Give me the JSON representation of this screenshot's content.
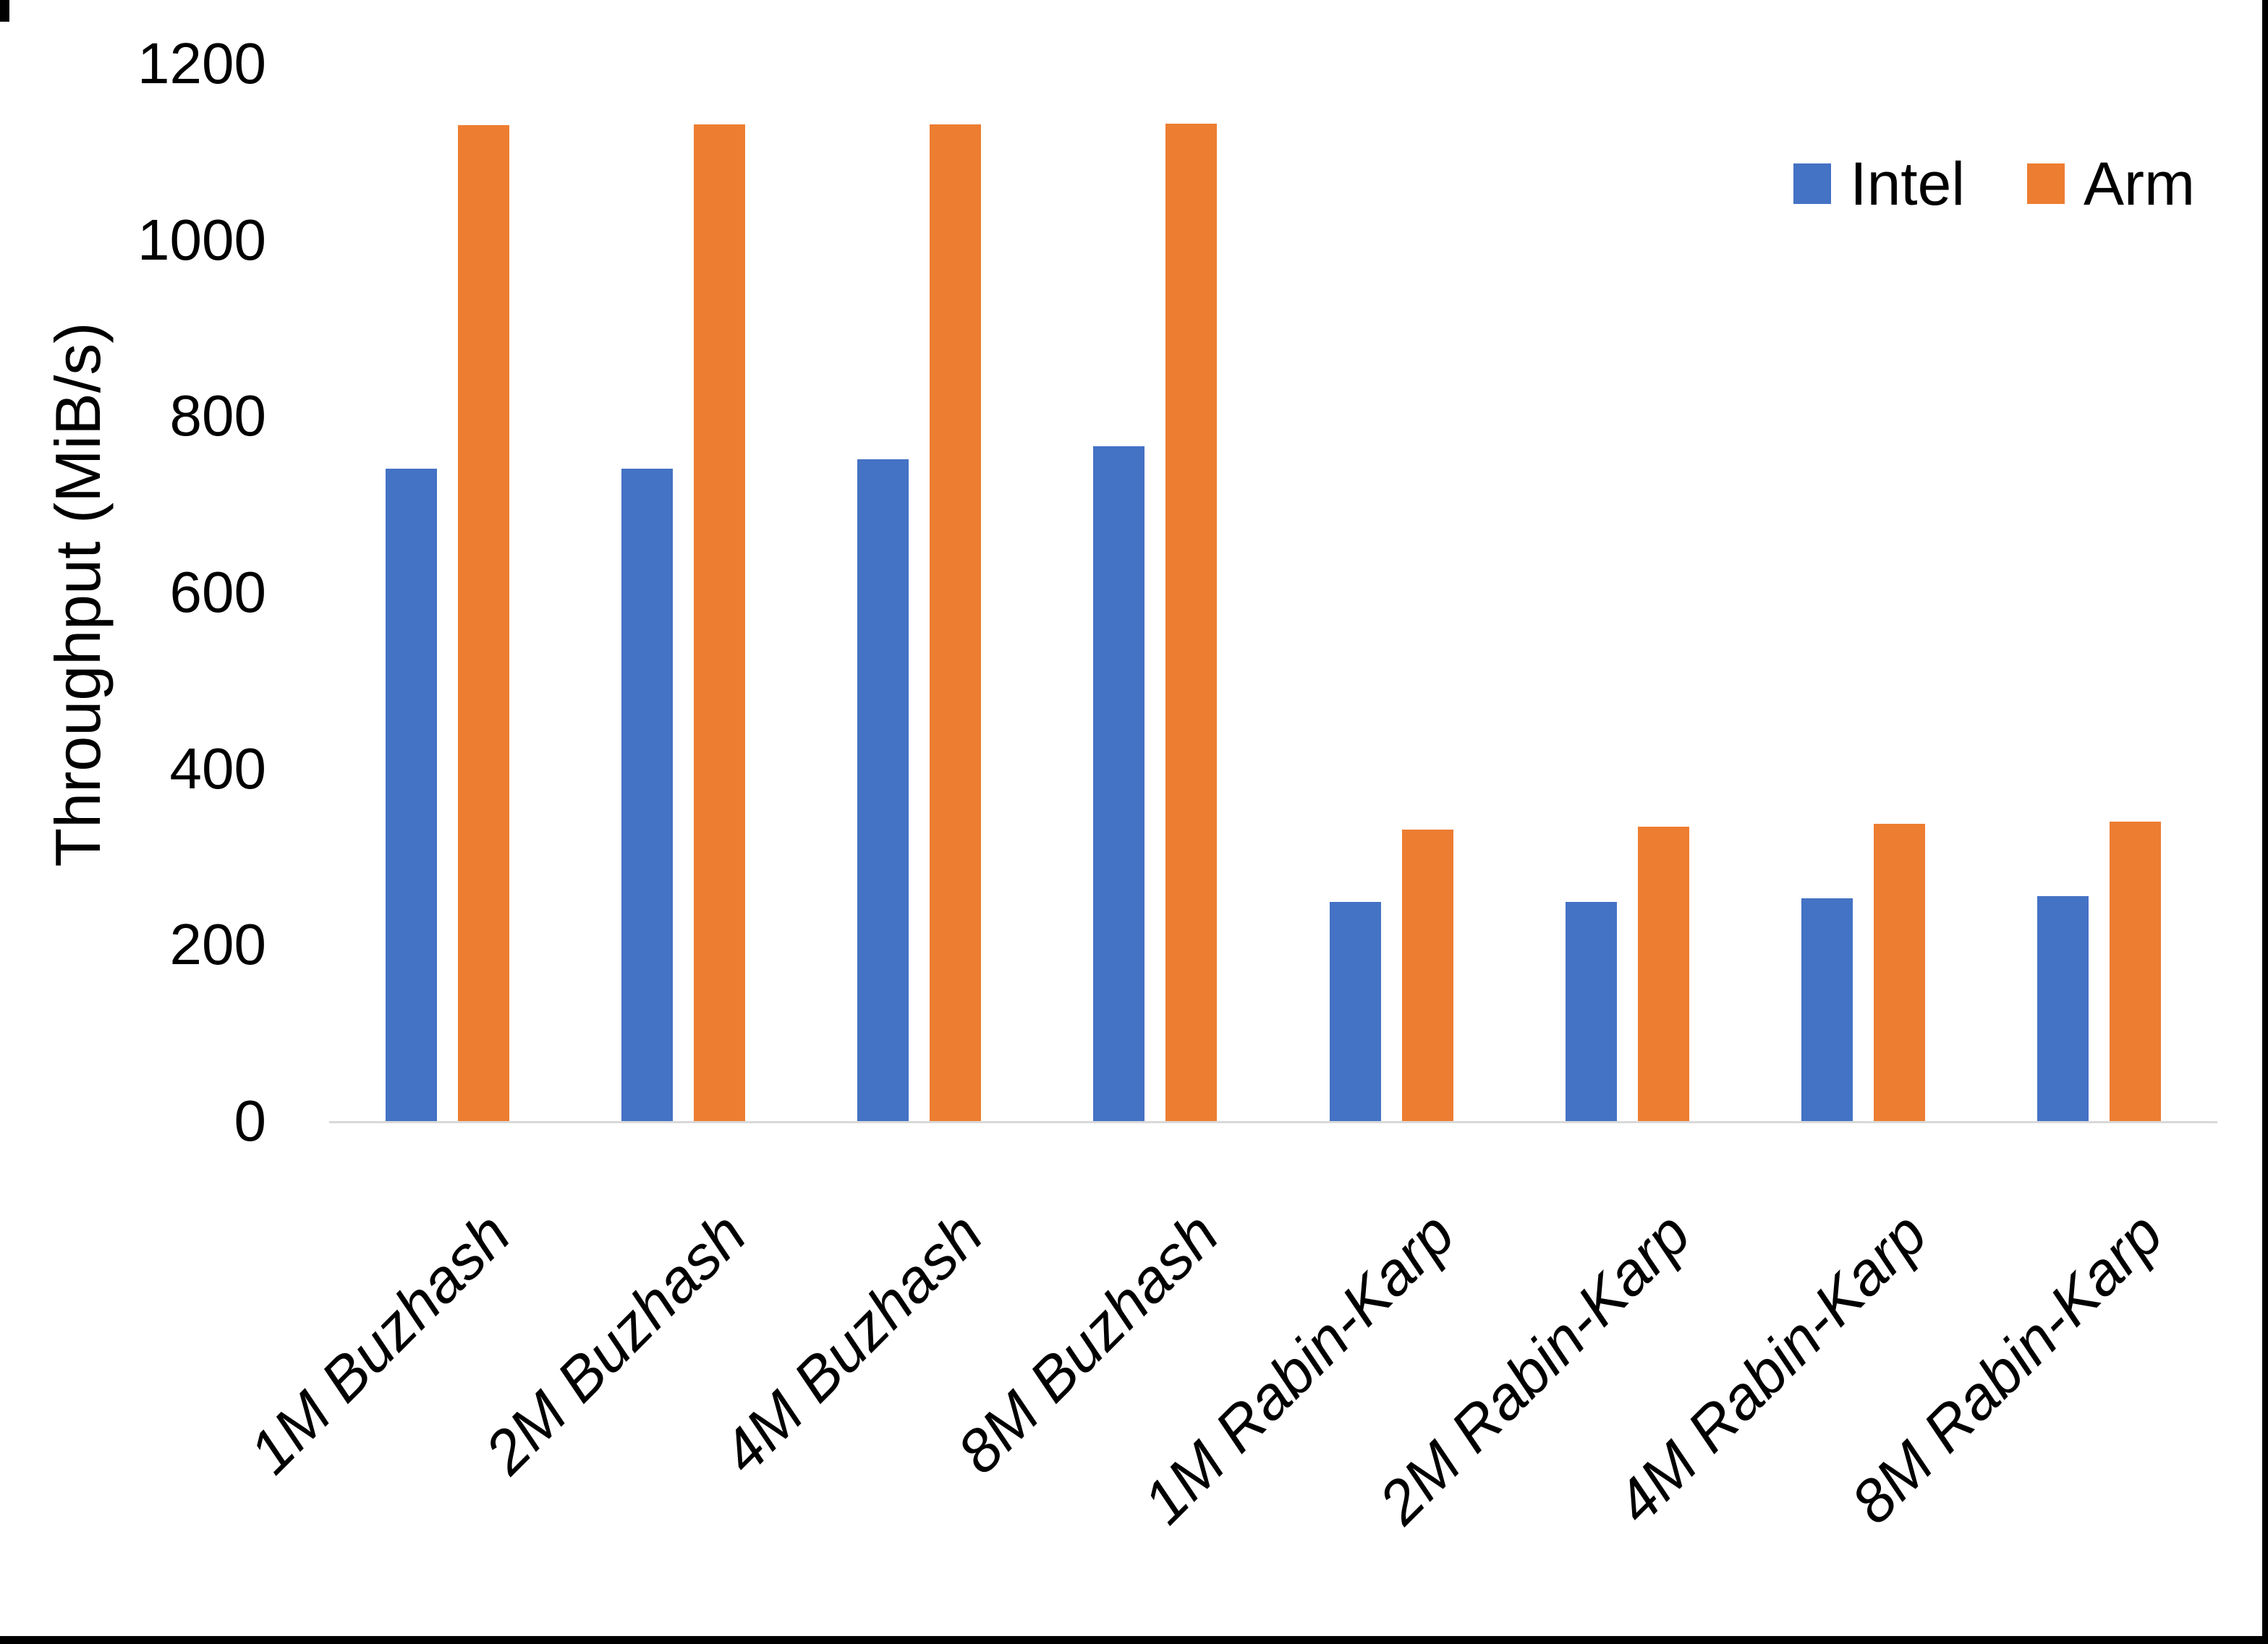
{
  "chart_data": {
    "type": "bar",
    "title": "",
    "xlabel": "",
    "ylabel": "Throughput (MiB/s)",
    "categories": [
      "1M Buzhash",
      "2M Buzhash",
      "4M Buzhash",
      "8M Buzhash",
      "1M Rabin-Karp",
      "2M Rabin-Karp",
      "4M Rabin-Karp",
      "8M Rabin-Karp"
    ],
    "series": [
      {
        "name": "Intel",
        "color": "#4472C4",
        "values": [
          740,
          740,
          751,
          766,
          249,
          249,
          253,
          255
        ]
      },
      {
        "name": "Arm",
        "color": "#ED7D31",
        "values": [
          1130,
          1131,
          1131,
          1132,
          331,
          334,
          337,
          340
        ]
      }
    ],
    "ylim": [
      0,
      1200
    ],
    "yticks": [
      0,
      200,
      400,
      600,
      800,
      1000,
      1200
    ],
    "grid": false,
    "legend_position": "top-right",
    "axis_line_color": "#D9D9D9",
    "background_color": "#FFFFFF"
  }
}
